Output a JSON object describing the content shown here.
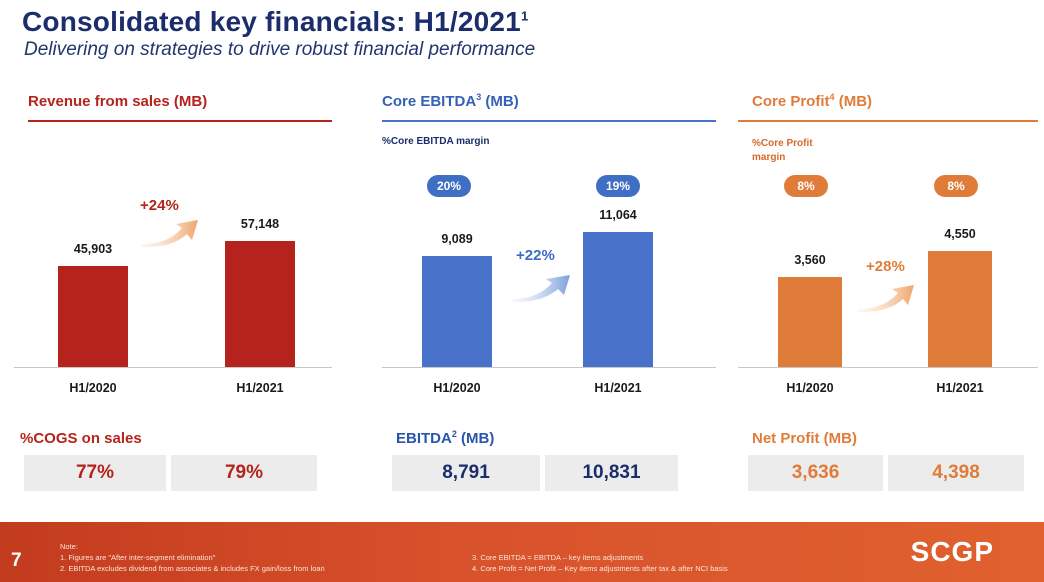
{
  "header": {
    "title": "Consolidated key financials: H1/2021",
    "title_sup": "1",
    "subtitle": "Delivering on strategies to drive robust financial performance"
  },
  "colors": {
    "revenue": "#b5241c",
    "ebitda": "#4872c9",
    "profit": "#e07c3a",
    "navy": "#1b2d6b"
  },
  "chart_data": [
    {
      "type": "bar",
      "title": "Revenue from sales (MB)",
      "categories": [
        "H1/2020",
        "H1/2021"
      ],
      "values": [
        45903,
        57148
      ],
      "value_labels": [
        "45,903",
        "57,148"
      ],
      "growth": "+24%",
      "ylim": [
        0,
        100000
      ],
      "summary": {
        "label": "%COGS on sales",
        "values": [
          "77%",
          "79%"
        ]
      }
    },
    {
      "type": "bar",
      "title": "Core EBITDA",
      "title_sup": "3",
      "title_unit": "(MB)",
      "margin_label": "%Core EBITDA margin",
      "margins": [
        "20%",
        "19%"
      ],
      "categories": [
        "H1/2020",
        "H1/2021"
      ],
      "values": [
        9089,
        11064
      ],
      "value_labels": [
        "9,089",
        "11,064"
      ],
      "growth": "+22%",
      "ylim": [
        0,
        18000
      ],
      "summary": {
        "label": "EBITDA",
        "label_sup": "2",
        "label_unit": "(MB)",
        "values": [
          "8,791",
          "10,831"
        ]
      }
    },
    {
      "type": "bar",
      "title": "Core Profit",
      "title_sup": "4",
      "title_unit": "(MB)",
      "margin_label": "%Core Profit margin",
      "margins": [
        "8%",
        "8%"
      ],
      "categories": [
        "H1/2020",
        "H1/2021"
      ],
      "values": [
        3560,
        4550
      ],
      "value_labels": [
        "3,560",
        "4,550"
      ],
      "growth": "+28%",
      "ylim": [
        0,
        8660
      ],
      "summary": {
        "label": "Net Profit (MB)",
        "values": [
          "3,636",
          "4,398"
        ]
      }
    }
  ],
  "footer": {
    "page_number": "7",
    "note_title": "Note:",
    "notes_left": [
      "1.   Figures are \"After inter-segment elimination\"",
      "2.   EBITDA excludes dividend from associates & includes FX gain/loss from loan"
    ],
    "notes_right": [
      "3. Core EBITDA = EBITDA – key items adjustments",
      "4. Core Profit = Net Profit – Key items adjustments after tax & after NCI basis"
    ],
    "logo": "SCGP"
  }
}
